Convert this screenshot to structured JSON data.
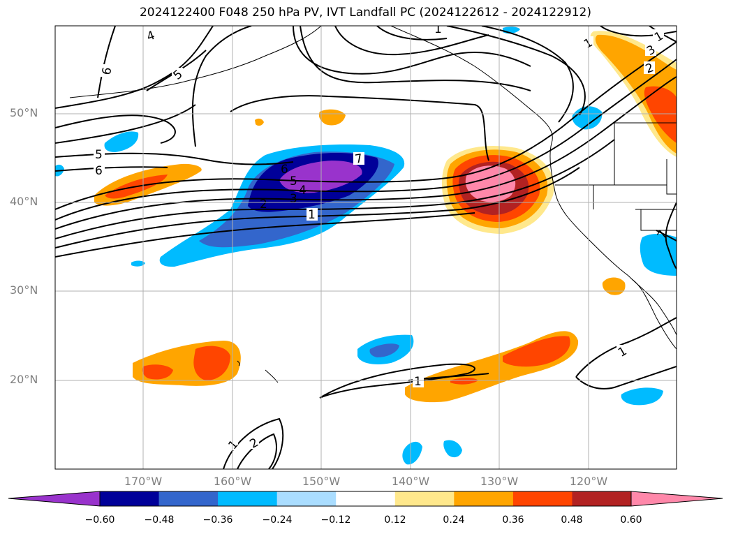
{
  "title": "2024122400 F048 250 hPa PV, IVT Landfall PC (2024122612 - 2024122912)",
  "lat_labels": [
    "50°N",
    "40°N",
    "30°N",
    "20°N"
  ],
  "lon_labels": [
    "170°W",
    "160°W",
    "150°W",
    "140°W",
    "130°W",
    "120°W"
  ],
  "colorbar": {
    "colors": [
      "#9933cc",
      "#000099",
      "#3366cc",
      "#00bbff",
      "#aaddff",
      "#ffffff",
      "#ffe88c",
      "#ffa500",
      "#ff4500",
      "#b22222",
      "#ff88aa"
    ],
    "ticks": [
      "−0.60",
      "−0.48",
      "−0.36",
      "−0.24",
      "−0.12",
      "0.12",
      "0.24",
      "0.36",
      "0.48",
      "0.60"
    ]
  },
  "contour_labels": [
    "4",
    "6",
    "5",
    "5",
    "6",
    "7",
    "6",
    "5",
    "4",
    "3",
    "2",
    "1",
    "1",
    "1",
    "1",
    "2",
    "1",
    "3",
    "2",
    "1",
    "7",
    "1"
  ]
}
